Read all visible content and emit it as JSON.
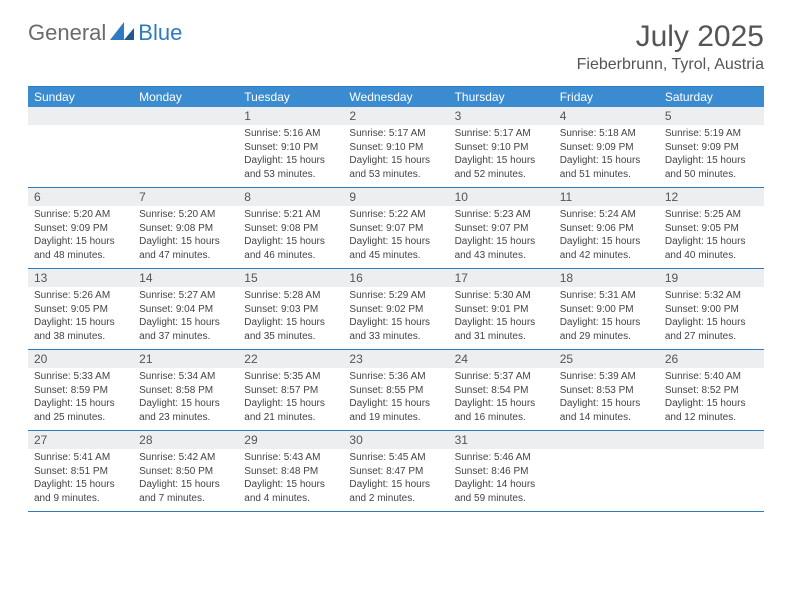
{
  "logo": {
    "general": "General",
    "blue": "Blue"
  },
  "title": "July 2025",
  "location": "Fieberbrunn, Tyrol, Austria",
  "colors": {
    "header_bg": "#3b8bd0",
    "border": "#2d7bc0",
    "daynum_bg": "#eceeef",
    "text": "#444444",
    "title_text": "#555555"
  },
  "day_names": [
    "Sunday",
    "Monday",
    "Tuesday",
    "Wednesday",
    "Thursday",
    "Friday",
    "Saturday"
  ],
  "weeks": [
    [
      null,
      null,
      {
        "n": "1",
        "sr": "5:16 AM",
        "ss": "9:10 PM",
        "dl": "15 hours and 53 minutes."
      },
      {
        "n": "2",
        "sr": "5:17 AM",
        "ss": "9:10 PM",
        "dl": "15 hours and 53 minutes."
      },
      {
        "n": "3",
        "sr": "5:17 AM",
        "ss": "9:10 PM",
        "dl": "15 hours and 52 minutes."
      },
      {
        "n": "4",
        "sr": "5:18 AM",
        "ss": "9:09 PM",
        "dl": "15 hours and 51 minutes."
      },
      {
        "n": "5",
        "sr": "5:19 AM",
        "ss": "9:09 PM",
        "dl": "15 hours and 50 minutes."
      }
    ],
    [
      {
        "n": "6",
        "sr": "5:20 AM",
        "ss": "9:09 PM",
        "dl": "15 hours and 48 minutes."
      },
      {
        "n": "7",
        "sr": "5:20 AM",
        "ss": "9:08 PM",
        "dl": "15 hours and 47 minutes."
      },
      {
        "n": "8",
        "sr": "5:21 AM",
        "ss": "9:08 PM",
        "dl": "15 hours and 46 minutes."
      },
      {
        "n": "9",
        "sr": "5:22 AM",
        "ss": "9:07 PM",
        "dl": "15 hours and 45 minutes."
      },
      {
        "n": "10",
        "sr": "5:23 AM",
        "ss": "9:07 PM",
        "dl": "15 hours and 43 minutes."
      },
      {
        "n": "11",
        "sr": "5:24 AM",
        "ss": "9:06 PM",
        "dl": "15 hours and 42 minutes."
      },
      {
        "n": "12",
        "sr": "5:25 AM",
        "ss": "9:05 PM",
        "dl": "15 hours and 40 minutes."
      }
    ],
    [
      {
        "n": "13",
        "sr": "5:26 AM",
        "ss": "9:05 PM",
        "dl": "15 hours and 38 minutes."
      },
      {
        "n": "14",
        "sr": "5:27 AM",
        "ss": "9:04 PM",
        "dl": "15 hours and 37 minutes."
      },
      {
        "n": "15",
        "sr": "5:28 AM",
        "ss": "9:03 PM",
        "dl": "15 hours and 35 minutes."
      },
      {
        "n": "16",
        "sr": "5:29 AM",
        "ss": "9:02 PM",
        "dl": "15 hours and 33 minutes."
      },
      {
        "n": "17",
        "sr": "5:30 AM",
        "ss": "9:01 PM",
        "dl": "15 hours and 31 minutes."
      },
      {
        "n": "18",
        "sr": "5:31 AM",
        "ss": "9:00 PM",
        "dl": "15 hours and 29 minutes."
      },
      {
        "n": "19",
        "sr": "5:32 AM",
        "ss": "9:00 PM",
        "dl": "15 hours and 27 minutes."
      }
    ],
    [
      {
        "n": "20",
        "sr": "5:33 AM",
        "ss": "8:59 PM",
        "dl": "15 hours and 25 minutes."
      },
      {
        "n": "21",
        "sr": "5:34 AM",
        "ss": "8:58 PM",
        "dl": "15 hours and 23 minutes."
      },
      {
        "n": "22",
        "sr": "5:35 AM",
        "ss": "8:57 PM",
        "dl": "15 hours and 21 minutes."
      },
      {
        "n": "23",
        "sr": "5:36 AM",
        "ss": "8:55 PM",
        "dl": "15 hours and 19 minutes."
      },
      {
        "n": "24",
        "sr": "5:37 AM",
        "ss": "8:54 PM",
        "dl": "15 hours and 16 minutes."
      },
      {
        "n": "25",
        "sr": "5:39 AM",
        "ss": "8:53 PM",
        "dl": "15 hours and 14 minutes."
      },
      {
        "n": "26",
        "sr": "5:40 AM",
        "ss": "8:52 PM",
        "dl": "15 hours and 12 minutes."
      }
    ],
    [
      {
        "n": "27",
        "sr": "5:41 AM",
        "ss": "8:51 PM",
        "dl": "15 hours and 9 minutes."
      },
      {
        "n": "28",
        "sr": "5:42 AM",
        "ss": "8:50 PM",
        "dl": "15 hours and 7 minutes."
      },
      {
        "n": "29",
        "sr": "5:43 AM",
        "ss": "8:48 PM",
        "dl": "15 hours and 4 minutes."
      },
      {
        "n": "30",
        "sr": "5:45 AM",
        "ss": "8:47 PM",
        "dl": "15 hours and 2 minutes."
      },
      {
        "n": "31",
        "sr": "5:46 AM",
        "ss": "8:46 PM",
        "dl": "14 hours and 59 minutes."
      },
      null,
      null
    ]
  ],
  "labels": {
    "sunrise": "Sunrise:",
    "sunset": "Sunset:",
    "daylight": "Daylight:"
  }
}
